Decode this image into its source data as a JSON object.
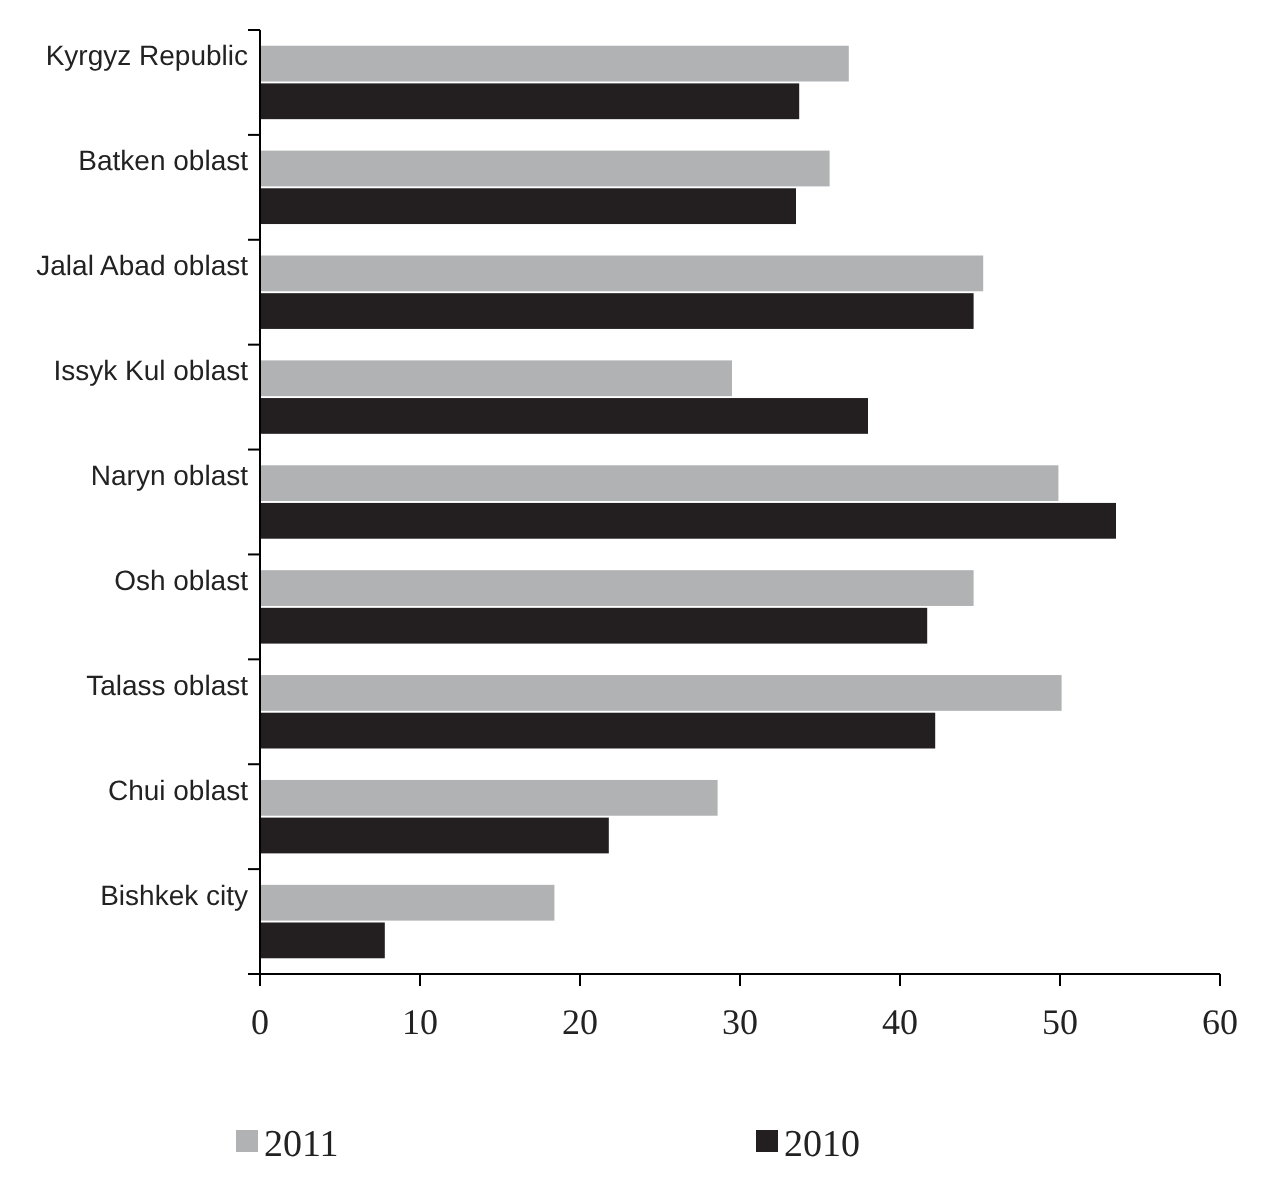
{
  "chart_data": {
    "type": "bar",
    "orientation": "horizontal",
    "categories": [
      "Kyrgyz Republic",
      "Batken oblast",
      "Jalal Abad oblast",
      "Issyk Kul oblast",
      "Naryn oblast",
      "Osh oblast",
      "Talass oblast",
      "Chui oblast",
      "Bishkek city"
    ],
    "series": [
      {
        "name": "2011",
        "color": "#b1b2b4",
        "values": [
          36.8,
          35.6,
          45.2,
          29.5,
          49.9,
          44.6,
          50.1,
          28.6,
          18.4
        ]
      },
      {
        "name": "2010",
        "color": "#231f20",
        "values": [
          33.7,
          33.5,
          44.6,
          38.0,
          53.5,
          41.7,
          42.2,
          21.8,
          7.8
        ]
      }
    ],
    "xlim": [
      0,
      60
    ],
    "xticks": [
      0,
      10,
      20,
      30,
      40,
      50,
      60
    ],
    "legend": "bottom",
    "grid": false
  }
}
